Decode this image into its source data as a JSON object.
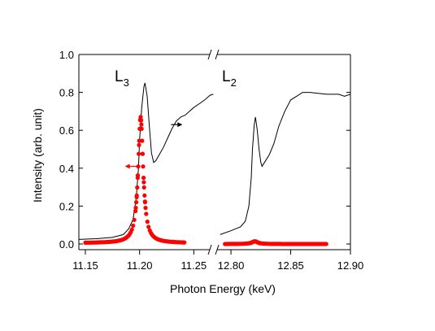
{
  "chart_data": {
    "type": "scatter",
    "title": "",
    "xlabel": "Photon Energy (keV)",
    "ylabel": "Intensity (arb. unit)",
    "grid": false,
    "broken_x_axis": true,
    "annotations": {
      "l3": {
        "main": "L",
        "sub": "3"
      },
      "l2": {
        "main": "L",
        "sub": "2"
      }
    },
    "colors": {
      "line": "#000000",
      "points": "#ff0000",
      "axis": "#000000"
    },
    "panels": [
      {
        "edge": "L3",
        "xlim": [
          11.144,
          11.27
        ],
        "ylim": [
          -0.03,
          1.0
        ],
        "xticks": [
          {
            "value": 11.15,
            "label": "11.15"
          },
          {
            "value": 11.2,
            "label": "11.20"
          },
          {
            "value": 11.25,
            "label": "11.25"
          }
        ],
        "series": [
          {
            "kind": "line",
            "points": [
              [
                11.144,
                0.024
              ],
              [
                11.16,
                0.028
              ],
              [
                11.175,
                0.035
              ],
              [
                11.185,
                0.05
              ],
              [
                11.19,
                0.08
              ],
              [
                11.194,
                0.13
              ],
              [
                11.197,
                0.25
              ],
              [
                11.199,
                0.4
              ],
              [
                11.2,
                0.55
              ],
              [
                11.202,
                0.72
              ],
              [
                11.204,
                0.83
              ],
              [
                11.205,
                0.85
              ],
              [
                11.207,
                0.78
              ],
              [
                11.209,
                0.62
              ],
              [
                11.211,
                0.48
              ],
              [
                11.213,
                0.43
              ],
              [
                11.215,
                0.44
              ],
              [
                11.218,
                0.47
              ],
              [
                11.222,
                0.51
              ],
              [
                11.226,
                0.56
              ],
              [
                11.23,
                0.61
              ],
              [
                11.234,
                0.65
              ],
              [
                11.238,
                0.67
              ],
              [
                11.242,
                0.68
              ],
              [
                11.246,
                0.7
              ],
              [
                11.25,
                0.72
              ],
              [
                11.255,
                0.74
              ],
              [
                11.26,
                0.76
              ],
              [
                11.265,
                0.785
              ],
              [
                11.268,
                0.79
              ]
            ]
          },
          {
            "kind": "scatter",
            "peak": {
              "x": 11.201,
              "y": 0.67
            },
            "hwhm": 0.0028,
            "baseline": 0.005,
            "x_range": [
              11.15,
              11.242
            ]
          }
        ],
        "arrows": [
          {
            "x": 11.197,
            "y": 0.41,
            "direction": "left",
            "color": "#ff0000"
          },
          {
            "x": 11.229,
            "y": 0.63,
            "direction": "right",
            "color": "#000000"
          }
        ]
      },
      {
        "edge": "L2",
        "xlim": [
          12.785,
          12.9
        ],
        "ylim": [
          -0.03,
          1.0
        ],
        "xticks": [
          {
            "value": 12.8,
            "label": "12.80"
          },
          {
            "value": 12.85,
            "label": "12.85"
          },
          {
            "value": 12.9,
            "label": "12.90"
          }
        ],
        "series": [
          {
            "kind": "line",
            "points": [
              [
                12.791,
                0.05
              ],
              [
                12.8,
                0.07
              ],
              [
                12.808,
                0.09
              ],
              [
                12.812,
                0.12
              ],
              [
                12.815,
                0.2
              ],
              [
                12.817,
                0.35
              ],
              [
                12.818,
                0.5
              ],
              [
                12.8195,
                0.63
              ],
              [
                12.8205,
                0.67
              ],
              [
                12.822,
                0.6
              ],
              [
                12.8235,
                0.5
              ],
              [
                12.825,
                0.43
              ],
              [
                12.826,
                0.41
              ],
              [
                12.828,
                0.43
              ],
              [
                12.832,
                0.47
              ],
              [
                12.836,
                0.53
              ],
              [
                12.84,
                0.62
              ],
              [
                12.845,
                0.7
              ],
              [
                12.85,
                0.76
              ],
              [
                12.855,
                0.78
              ],
              [
                12.86,
                0.8
              ],
              [
                12.866,
                0.8
              ],
              [
                12.873,
                0.795
              ],
              [
                12.88,
                0.79
              ],
              [
                12.89,
                0.79
              ],
              [
                12.895,
                0.78
              ],
              [
                12.9,
                0.79
              ]
            ]
          },
          {
            "kind": "scatter",
            "peak": {
              "x": 12.82,
              "y": 0.014
            },
            "hwhm": 0.003,
            "baseline": 0.0,
            "x_range": [
              12.795,
              12.88
            ]
          }
        ],
        "arrows": []
      }
    ]
  }
}
